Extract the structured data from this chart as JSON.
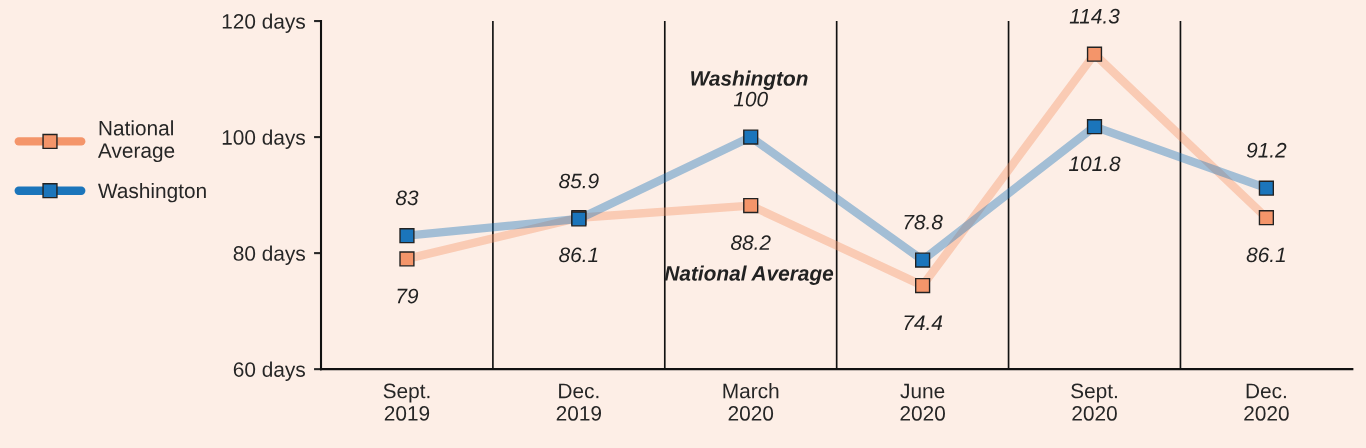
{
  "chart_data": {
    "type": "line",
    "categories": [
      "Sept.\n2019",
      "Dec.\n2019",
      "March\n2020",
      "June\n2020",
      "Sept.\n2020",
      "Dec.\n2020"
    ],
    "series": [
      {
        "name": "National\nAverage",
        "color": "#f4956a",
        "values": [
          79,
          86.1,
          88.2,
          74.4,
          114.3,
          86.1
        ],
        "value_labels": [
          "79",
          "86.1",
          "88.2",
          "74.4",
          "114.3",
          "86.1"
        ]
      },
      {
        "name": "Washington",
        "color": "#1b75bb",
        "values": [
          83,
          85.9,
          100,
          78.8,
          101.8,
          91.2
        ],
        "value_labels": [
          "83",
          "85.9",
          "100",
          "78.8",
          "101.8",
          "91.2"
        ]
      }
    ],
    "ylim": [
      60,
      120
    ],
    "yticks": [
      {
        "value": 60,
        "label": "60 days"
      },
      {
        "value": 80,
        "label": "80 days"
      },
      {
        "value": 100,
        "label": "100 days"
      },
      {
        "value": 120,
        "label": "120 days"
      }
    ],
    "annotations": [
      "Washington",
      "National Average"
    ],
    "grid": "x",
    "legend": "left",
    "marker": "square",
    "line_style": "solid"
  }
}
